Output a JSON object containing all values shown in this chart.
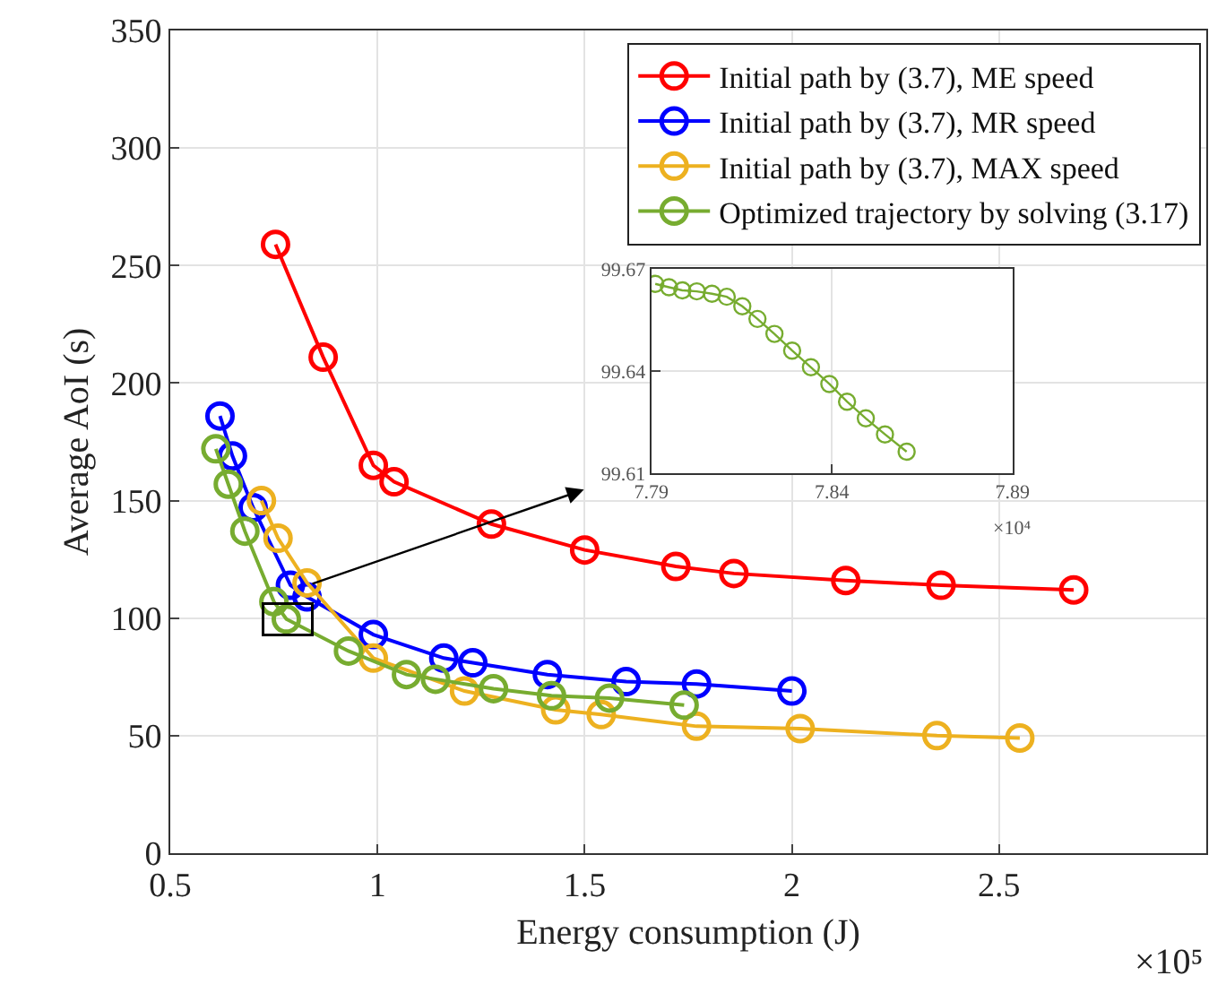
{
  "chart_data": [
    {
      "type": "line",
      "xlabel": "Energy consumption (J)",
      "ylabel": "Average AoI (s)",
      "annotations": [
        "×10⁵"
      ],
      "xlim": [
        0.5,
        3
      ],
      "xticks": [
        0.5,
        1,
        1.5,
        2,
        2.5
      ],
      "ylim": [
        0,
        350
      ],
      "yticks": [
        0,
        50,
        100,
        150,
        200,
        250,
        300,
        350
      ],
      "grid": true,
      "legend": "top right",
      "marker": "circle",
      "line_style": "solid",
      "series": [
        {
          "name": "Initial path by (3.7), ME speed",
          "color": "#ff0000",
          "x": [
            0.754,
            0.869,
            0.99,
            1.04,
            1.275,
            1.5,
            1.72,
            1.86,
            2.13,
            2.36,
            2.68
          ],
          "values": [
            259,
            211,
            165,
            158,
            140,
            129,
            122,
            119,
            116,
            114,
            112
          ]
        },
        {
          "name": "Initial path by (3.7), MR speed",
          "color": "#0000ff",
          "x": [
            0.62,
            0.65,
            0.7,
            0.79,
            0.83,
            0.99,
            1.16,
            1.23,
            1.41,
            1.6,
            1.77,
            2.0
          ],
          "values": [
            186,
            169,
            147,
            114,
            109,
            93,
            83,
            81,
            76,
            73,
            72,
            69
          ]
        },
        {
          "name": "Initial path by (3.7), MAX speed",
          "color": "#edb120",
          "x": [
            0.72,
            0.76,
            0.83,
            0.99,
            1.21,
            1.43,
            1.54,
            1.77,
            2.02,
            2.35,
            2.55
          ],
          "values": [
            150,
            134,
            115,
            83,
            69,
            61,
            59,
            54,
            53,
            50,
            49
          ]
        },
        {
          "name": "Optimized trajectory by solving (3.17)",
          "color": "#77ac30",
          "x": [
            0.61,
            0.64,
            0.68,
            0.75,
            0.78,
            0.93,
            1.07,
            1.14,
            1.28,
            1.42,
            1.56,
            1.74
          ],
          "values": [
            172,
            157,
            137,
            107,
            99.6,
            86,
            76,
            74,
            70,
            67,
            66,
            63
          ]
        }
      ]
    },
    {
      "type": "line",
      "annotations": [
        "×10⁴"
      ],
      "xlim": [
        7.79,
        7.89
      ],
      "xticks": [
        7.79,
        7.84,
        7.89
      ],
      "ylim": [
        99.61,
        99.67
      ],
      "yticks": [
        99.61,
        99.64,
        99.67
      ],
      "grid": true,
      "marker": "circle",
      "line_style": "solid",
      "series": [
        {
          "color": "#77ac30",
          "x": [
            7.7911,
            7.7949,
            7.7986,
            7.8026,
            7.8068,
            7.8109,
            7.8152,
            7.8194,
            7.8241,
            7.829,
            7.8342,
            7.8393,
            7.8442,
            7.8494,
            7.8547,
            7.8607
          ],
          "values": [
            99.6656,
            99.6646,
            99.6637,
            99.6634,
            99.6627,
            99.6618,
            99.659,
            99.6553,
            99.6509,
            99.646,
            99.6411,
            99.6362,
            99.631,
            99.6261,
            99.6214,
            99.6163
          ]
        }
      ]
    }
  ]
}
